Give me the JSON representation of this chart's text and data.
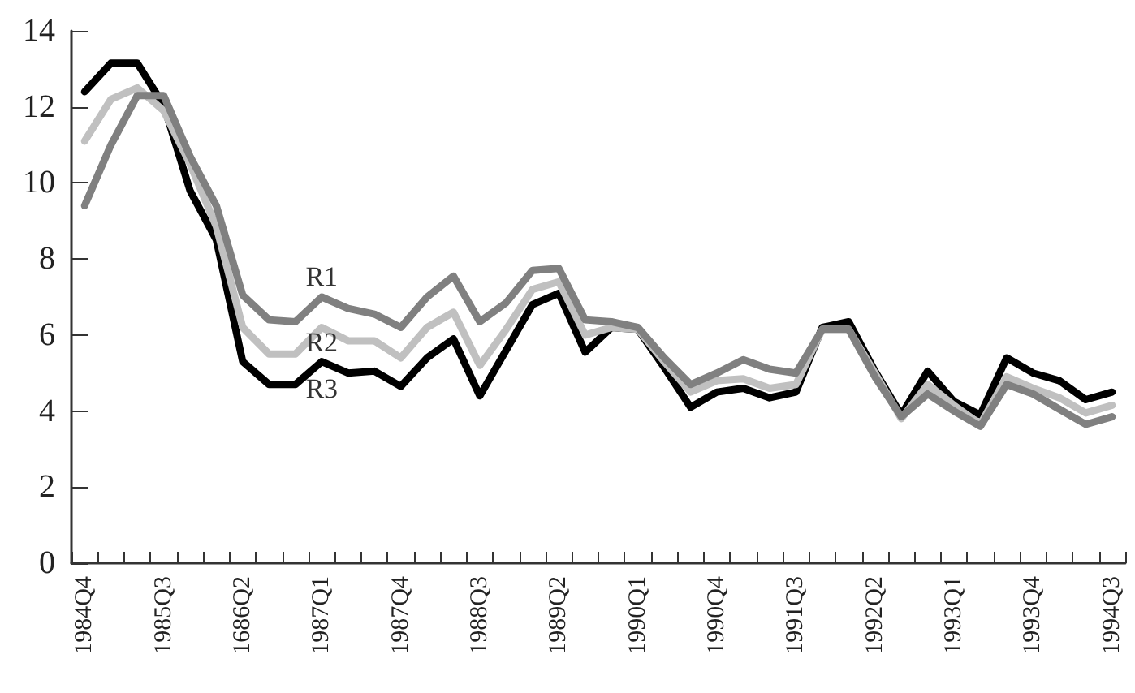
{
  "chart_data": {
    "type": "line",
    "categories": [
      "1984Q4",
      null,
      null,
      "1985Q3",
      null,
      null,
      "1686Q2",
      null,
      null,
      "1987Q1",
      null,
      null,
      "1987Q4",
      null,
      null,
      "1988Q3",
      null,
      null,
      "1989Q2",
      null,
      null,
      "1990Q1",
      null,
      null,
      "1990Q4",
      null,
      null,
      "1991Q3",
      null,
      null,
      "1992Q2",
      null,
      null,
      "1993Q1",
      null,
      null,
      "1993Q4",
      null,
      null,
      "1994Q3"
    ],
    "series": [
      {
        "name": "R1",
        "color": "#808080",
        "values": [
          9.4,
          11.0,
          12.3,
          12.3,
          10.7,
          9.4,
          7.05,
          6.4,
          6.35,
          7.0,
          6.7,
          6.55,
          6.2,
          7.0,
          7.55,
          6.35,
          6.85,
          7.7,
          7.75,
          6.4,
          6.35,
          6.2,
          5.4,
          4.7,
          5.0,
          5.35,
          5.1,
          5.0,
          6.15,
          6.15,
          4.9,
          3.85,
          4.45,
          4.0,
          3.6,
          4.7,
          4.45,
          4.05,
          3.65,
          3.85
        ]
      },
      {
        "name": "R2",
        "color": "#c0c0c0",
        "values": [
          11.1,
          12.2,
          12.5,
          11.9,
          10.5,
          8.85,
          6.2,
          5.5,
          5.5,
          6.2,
          5.85,
          5.85,
          5.4,
          6.2,
          6.6,
          5.2,
          6.15,
          7.2,
          7.4,
          6.0,
          6.2,
          6.15,
          5.3,
          4.5,
          4.8,
          4.85,
          4.6,
          4.7,
          6.15,
          6.15,
          5.0,
          3.8,
          4.7,
          4.15,
          3.65,
          4.9,
          4.6,
          4.35,
          3.95,
          4.15
        ]
      },
      {
        "name": "R3",
        "color": "#000000",
        "values": [
          12.4,
          13.15,
          13.15,
          12.05,
          9.8,
          8.5,
          5.3,
          4.7,
          4.7,
          5.3,
          5.0,
          5.05,
          4.65,
          5.4,
          5.9,
          4.4,
          5.6,
          6.8,
          7.1,
          5.55,
          6.2,
          6.15,
          5.15,
          4.1,
          4.5,
          4.6,
          4.35,
          4.5,
          6.2,
          6.35,
          5.05,
          3.9,
          5.05,
          4.25,
          3.9,
          5.4,
          5.0,
          4.8,
          4.3,
          4.5
        ]
      }
    ],
    "ylim": [
      0,
      14
    ],
    "yticks": [
      0,
      2,
      4,
      6,
      8,
      10,
      12,
      14
    ],
    "grid": false,
    "legend": false,
    "marker": "none",
    "line_style": "solid"
  }
}
